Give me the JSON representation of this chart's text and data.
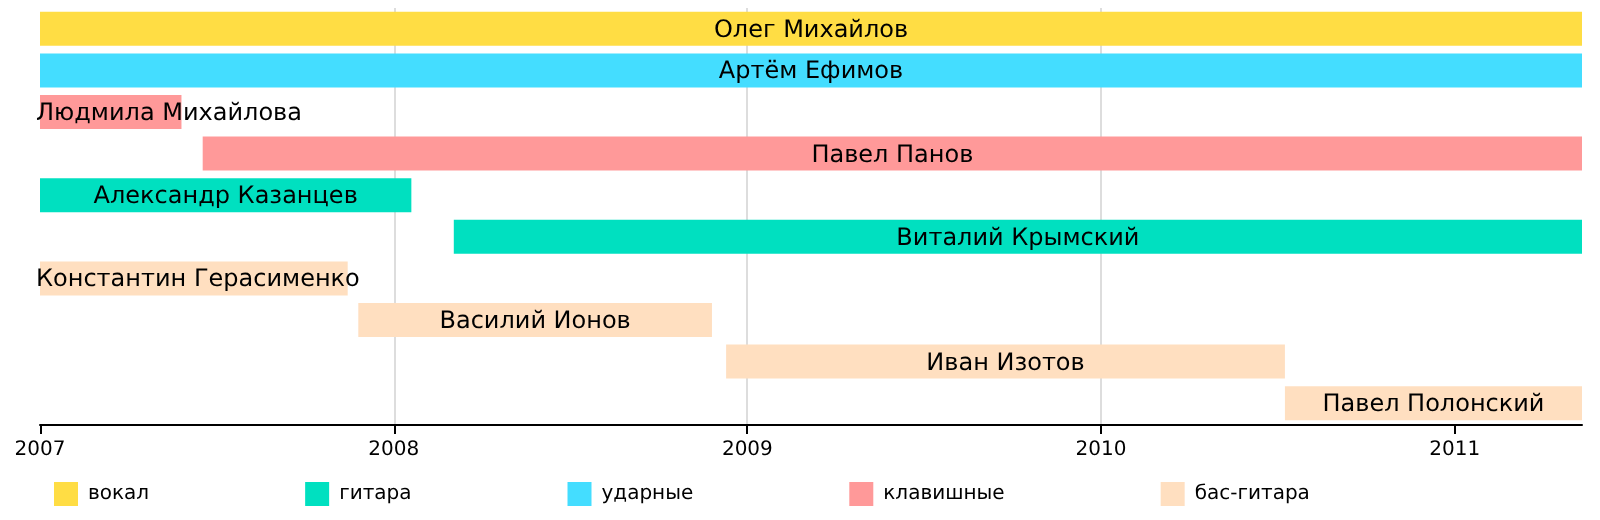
{
  "chart_data": {
    "type": "bar",
    "orientation": "horizontal",
    "categories": [
      "Олег Михайлов",
      "Артём Ефимов",
      "Людмила Михайлова",
      "Павел Панов",
      "Александр Казанцев",
      "Виталий Крымский",
      "Константин Герасименко",
      "Василий Ионов",
      "Иван Изотов",
      "Павел Полонский"
    ],
    "series": [
      {
        "name": "вокал",
        "color": "#ffdd44",
        "base": [
          2007,
          null,
          null,
          null,
          null,
          null,
          null,
          null,
          null,
          null
        ],
        "values": [
          4.36,
          null,
          null,
          null,
          null,
          null,
          null,
          null,
          null,
          null
        ]
      },
      {
        "name": "гитара",
        "color": "#00e0c0",
        "base": [
          null,
          null,
          null,
          null,
          2007,
          2008.17,
          null,
          null,
          null,
          null
        ],
        "values": [
          null,
          null,
          null,
          null,
          1.05,
          3.19,
          null,
          null,
          null,
          null
        ]
      },
      {
        "name": "ударные",
        "color": "#44ddff",
        "base": [
          null,
          2007,
          null,
          null,
          null,
          null,
          null,
          null,
          null,
          null
        ],
        "values": [
          null,
          4.36,
          null,
          null,
          null,
          null,
          null,
          null,
          null,
          null
        ]
      },
      {
        "name": "клавишные",
        "color": "#ff9999",
        "base": [
          null,
          null,
          2007,
          2007.46,
          null,
          null,
          null,
          null,
          null,
          null
        ],
        "values": [
          null,
          null,
          0.4,
          3.9,
          null,
          null,
          null,
          null,
          null,
          null
        ]
      },
      {
        "name": "бас-гитара",
        "color": "#ffdfc0",
        "base": [
          null,
          null,
          null,
          null,
          null,
          null,
          2007,
          2007.9,
          2008.94,
          2010.52
        ],
        "values": [
          null,
          null,
          null,
          null,
          null,
          null,
          0.87,
          1.0,
          1.58,
          0.84
        ]
      }
    ],
    "xlim": [
      2007,
      2011.36
    ],
    "xticks": [
      2007,
      2008,
      2009,
      2010,
      2011
    ],
    "grid": "x",
    "legend": "bottom",
    "tick_labels": "x"
  }
}
